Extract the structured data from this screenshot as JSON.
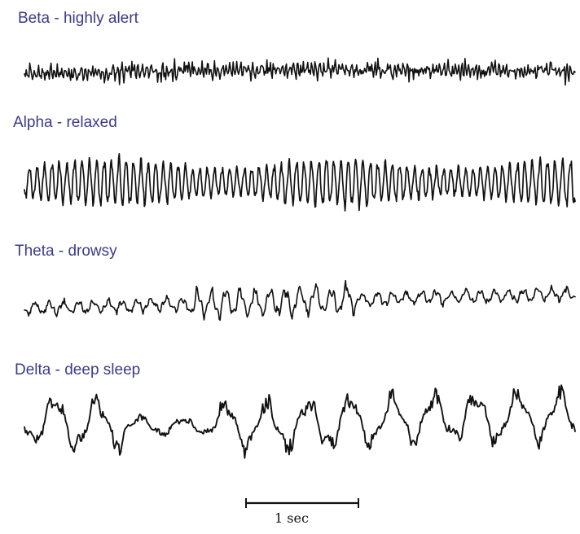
{
  "colors": {
    "label": "#3b3b8c",
    "trace": "#111111"
  },
  "waves": [
    {
      "id": "beta",
      "label": "Beta - highly alert"
    },
    {
      "id": "alpha",
      "label": "Alpha - relaxed"
    },
    {
      "id": "theta",
      "label": "Theta - drowsy"
    },
    {
      "id": "delta",
      "label": "Delta - deep sleep"
    }
  ],
  "scale": {
    "label": "1 sec"
  }
}
